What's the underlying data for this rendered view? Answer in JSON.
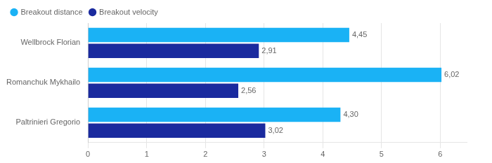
{
  "chart_data": {
    "type": "bar",
    "orientation": "horizontal",
    "categories": [
      "Wellbrock Florian",
      "Romanchuk Mykhailo",
      "Paltrinieri Gregorio"
    ],
    "series": [
      {
        "name": "Breakout distance",
        "color": "#1ab2f5",
        "values": [
          4.45,
          6.02,
          4.3
        ],
        "value_labels": [
          "4,45",
          "6,02",
          "4,30"
        ]
      },
      {
        "name": "Breakout velocity",
        "color": "#1a2a9e",
        "values": [
          2.91,
          2.56,
          3.02
        ],
        "value_labels": [
          "2,91",
          "2,56",
          "3,02"
        ]
      }
    ],
    "xlim": [
      0,
      6.45
    ],
    "xticks": [
      0,
      1,
      2,
      3,
      4,
      5,
      6
    ],
    "grid": true,
    "legend": "top-left",
    "data_labels": true
  }
}
